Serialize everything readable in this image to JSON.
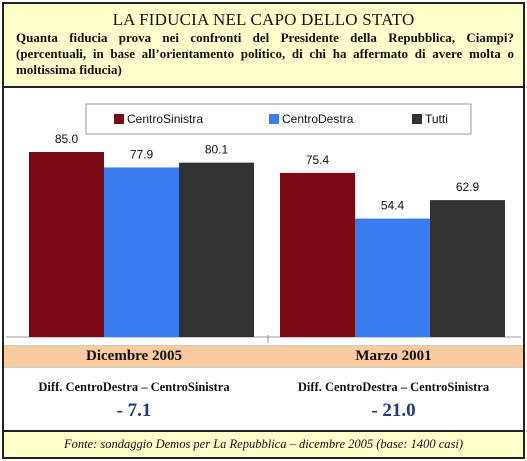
{
  "header": {
    "title": "LA FIDUCIA NEL CAPO DELLO STATO",
    "subtitle": "Quanta fiducia prova nei confronti del Presidente della Repubblica, Ciampi? (percentuali, in base all’orientamento politico, di chi ha affermato di avere molta o moltissima fiducia)"
  },
  "chart_data": {
    "type": "bar",
    "categories": [
      "Dicembre 2005",
      "Marzo 2001"
    ],
    "series": [
      {
        "name": "CentroSinistra",
        "values": [
          85.0,
          75.4
        ],
        "color": "#7b0a14"
      },
      {
        "name": "CentroDestra",
        "values": [
          77.9,
          54.4
        ],
        "color": "#3a7cf0"
      },
      {
        "name": "Tutti",
        "values": [
          80.1,
          62.9
        ],
        "color": "#333333"
      }
    ],
    "ylim": [
      0,
      100
    ],
    "grid": false,
    "legend_position": "top"
  },
  "periods": [
    {
      "label": "Dicembre 2005",
      "diff_label": "Diff. CentroDestra – CentroSinistra",
      "diff_value": "- 7.1"
    },
    {
      "label": "Marzo 2001",
      "diff_label": "Diff. CentroDestra – CentroSinistra",
      "diff_value": "- 21.0"
    }
  ],
  "footer": {
    "source": "Fonte: sondaggio Demos per La Repubblica – dicembre 2005 (base: 1400 casi)"
  }
}
